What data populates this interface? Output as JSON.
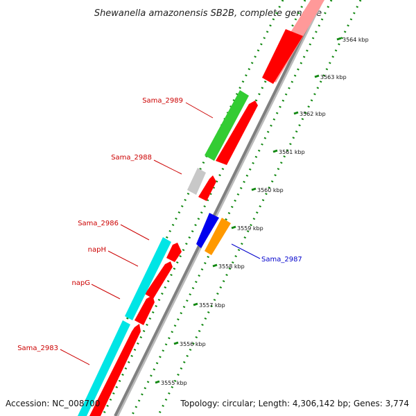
{
  "title": "Shewanella amazonensis SB2B, complete genome",
  "footer": {
    "accession": "Accession: NC_008700",
    "topology": "Topology: circular; Length: 4,306,142 bp; Genes: 3,774"
  },
  "colors": {
    "backbone": "#808080",
    "cds_forward": "#ff0000",
    "ticks": "#118811",
    "label_reverse": "#cc0000",
    "label_forward": "#0000cc"
  },
  "scale_ticks": [
    {
      "label": "3564 kbp"
    },
    {
      "label": "3563 kbp"
    },
    {
      "label": "3562 kbp"
    },
    {
      "label": "3561 kbp"
    },
    {
      "label": "3560 kbp"
    },
    {
      "label": "3559 kbp"
    },
    {
      "label": "3558 kbp"
    },
    {
      "label": "3557 kbp"
    },
    {
      "label": "3556 kbp"
    },
    {
      "label": "3555 kbp"
    }
  ],
  "gene_labels": [
    {
      "text": "Sama_2989",
      "strand": "reverse",
      "color": "#cc0000"
    },
    {
      "text": "Sama_2988",
      "strand": "reverse",
      "color": "#cc0000"
    },
    {
      "text": "Sama_2986",
      "strand": "reverse",
      "color": "#cc0000"
    },
    {
      "text": "napH",
      "strand": "reverse",
      "color": "#cc0000"
    },
    {
      "text": "napG",
      "strand": "reverse",
      "color": "#cc0000"
    },
    {
      "text": "Sama_2983",
      "strand": "reverse",
      "color": "#cc0000"
    },
    {
      "text": "Sama_2987",
      "strand": "forward",
      "color": "#0000cc"
    }
  ],
  "features": [
    {
      "name": "Sama_2989",
      "color": "#33cc33"
    },
    {
      "name": "Sama_2988",
      "color": "#c8c8c8"
    },
    {
      "name": "Sama_2986",
      "color": "#00e5e5"
    },
    {
      "name": "Sama_2987-a",
      "color": "#0000ee"
    },
    {
      "name": "Sama_2987-b",
      "color": "#ff9900"
    }
  ]
}
